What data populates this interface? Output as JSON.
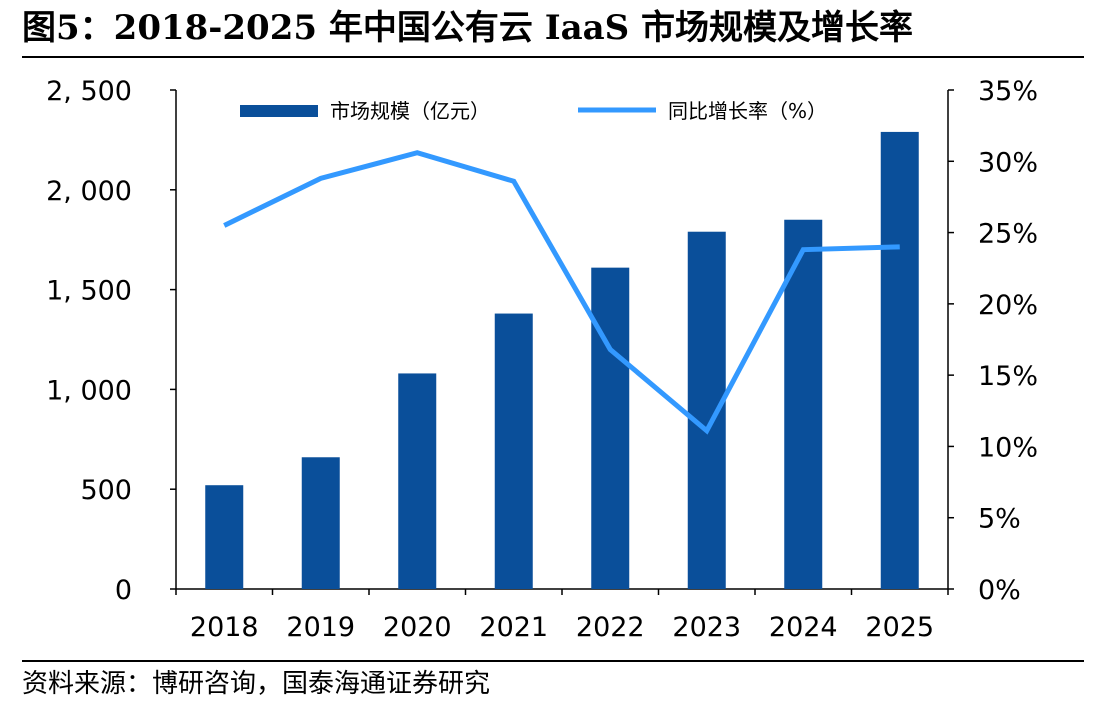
{
  "title": "图5：2018-2025 年中国公有云 IaaS 市场规模及增长率",
  "source": "资料来源：博研咨询，国泰海通证券研究",
  "chart_data": {
    "type": "bar+line",
    "categories": [
      "2018",
      "2019",
      "2020",
      "2021",
      "2022",
      "2023",
      "2024",
      "2025"
    ],
    "series": [
      {
        "name": "市场规模（亿元）",
        "type": "bar",
        "axis": "left",
        "color": "#0a4f9a",
        "values": [
          520,
          660,
          1080,
          1380,
          1610,
          1790,
          1850,
          2290
        ]
      },
      {
        "name": "同比增长率（%）",
        "type": "line",
        "axis": "right",
        "color": "#3399ff",
        "values": [
          25.5,
          28.8,
          30.6,
          28.6,
          16.8,
          11.1,
          23.8,
          24.0
        ]
      }
    ],
    "y_left": {
      "ylim": [
        0,
        2500
      ],
      "ticks": [
        "0",
        "500",
        "1, 000",
        "1, 500",
        "2, 000",
        "2, 500"
      ],
      "tick_values": [
        0,
        500,
        1000,
        1500,
        2000,
        2500
      ]
    },
    "y_right": {
      "ylim": [
        0,
        35
      ],
      "ticks": [
        "0%",
        "5%",
        "10%",
        "15%",
        "20%",
        "25%",
        "30%",
        "35%"
      ],
      "tick_values": [
        0,
        5,
        10,
        15,
        20,
        25,
        30,
        35
      ]
    },
    "grid": false,
    "legend": "top"
  }
}
